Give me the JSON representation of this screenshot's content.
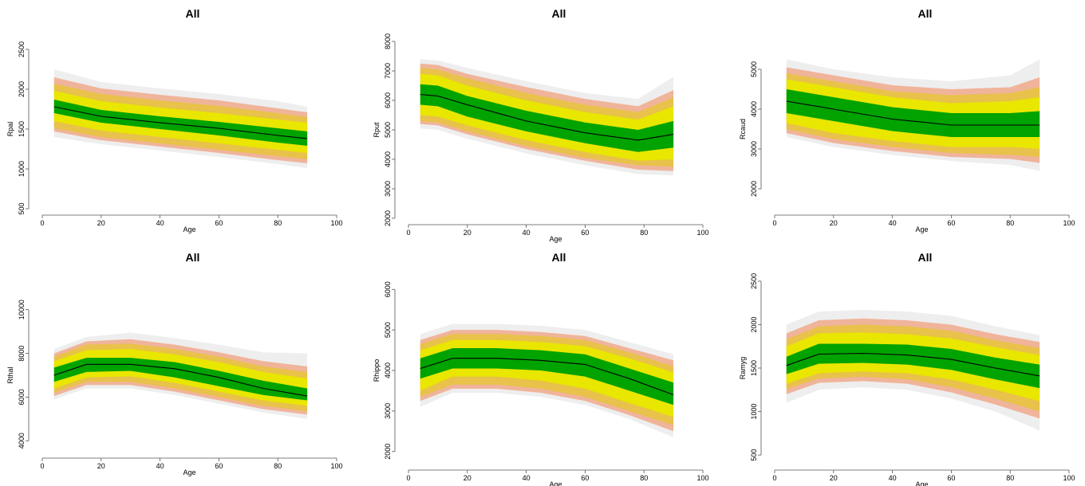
{
  "colors": {
    "b99": "#eeeeee",
    "b95": "#f0b49a",
    "b90": "#e8c24a",
    "b75": "#e9e600",
    "b50": "#00a300",
    "median": "#000000"
  },
  "chart_data": [
    {
      "type": "area",
      "title": "All",
      "xlabel": "Age",
      "ylabel": "Rpal",
      "xlim": [
        0,
        100
      ],
      "ylim": [
        500,
        2500
      ],
      "xticks": [
        "0",
        "20",
        "40",
        "60",
        "80",
        "100"
      ],
      "yticks": [
        "500",
        "1000",
        "1500",
        "2000",
        "2500"
      ],
      "x": [
        4,
        20,
        40,
        60,
        80,
        90
      ],
      "bands": {
        "q005": [
          1400,
          1310,
          1230,
          1150,
          1060,
          1010
        ],
        "q025": [
          1470,
          1360,
          1280,
          1200,
          1110,
          1070
        ],
        "q05": [
          1510,
          1400,
          1320,
          1240,
          1160,
          1120
        ],
        "q125": [
          1600,
          1480,
          1400,
          1320,
          1240,
          1200
        ],
        "q25": [
          1700,
          1580,
          1500,
          1420,
          1330,
          1290
        ],
        "q50": [
          1780,
          1660,
          1580,
          1510,
          1420,
          1380
        ],
        "q75": [
          1870,
          1740,
          1660,
          1590,
          1510,
          1470
        ],
        "q875": [
          1980,
          1850,
          1770,
          1700,
          1620,
          1580
        ],
        "q95": [
          2070,
          1940,
          1860,
          1790,
          1700,
          1650
        ],
        "q975": [
          2150,
          2010,
          1930,
          1860,
          1760,
          1710
        ],
        "q995": [
          2250,
          2090,
          2010,
          1940,
          1850,
          1780
        ]
      }
    },
    {
      "type": "area",
      "title": "All",
      "xlabel": "Age",
      "ylabel": "Rput",
      "xlim": [
        0,
        100
      ],
      "ylim": [
        2000,
        8000
      ],
      "xticks": [
        "0",
        "20",
        "40",
        "60",
        "80",
        "100"
      ],
      "yticks": [
        "2000",
        "3000",
        "4000",
        "5000",
        "6000",
        "7000",
        "8000"
      ],
      "x": [
        4,
        10,
        20,
        40,
        60,
        78,
        90
      ],
      "bands": {
        "q005": [
          5050,
          5000,
          4700,
          4200,
          3800,
          3500,
          3450
        ],
        "q025": [
          5200,
          5150,
          4850,
          4350,
          3950,
          3650,
          3600
        ],
        "q05": [
          5300,
          5250,
          4950,
          4450,
          4050,
          3800,
          3750
        ],
        "q125": [
          5500,
          5450,
          5150,
          4650,
          4250,
          3950,
          4000
        ],
        "q25": [
          5850,
          5800,
          5450,
          4950,
          4550,
          4250,
          4400
        ],
        "q50": [
          6200,
          6150,
          5850,
          5300,
          4900,
          4650,
          4850
        ],
        "q75": [
          6550,
          6500,
          6150,
          5650,
          5250,
          5000,
          5300
        ],
        "q875": [
          6900,
          6850,
          6500,
          6000,
          5600,
          5350,
          5800
        ],
        "q95": [
          7100,
          7050,
          6750,
          6250,
          5850,
          5600,
          6100
        ],
        "q975": [
          7250,
          7200,
          6900,
          6450,
          6050,
          5800,
          6350
        ],
        "q995": [
          7400,
          7350,
          7100,
          6650,
          6250,
          6050,
          6800
        ]
      }
    },
    {
      "type": "area",
      "title": "All",
      "xlabel": "Age",
      "ylabel": "Rcaud",
      "xlim": [
        0,
        100
      ],
      "ylim": [
        1500,
        5500
      ],
      "xticks": [
        "0",
        "20",
        "40",
        "60",
        "80",
        "100"
      ],
      "yticks": [
        "2000",
        "3000",
        "4000",
        "5000"
      ],
      "x": [
        4,
        20,
        40,
        60,
        80,
        90
      ],
      "bands": {
        "q005": [
          3300,
          3050,
          2850,
          2700,
          2600,
          2450
        ],
        "q025": [
          3400,
          3150,
          2950,
          2800,
          2750,
          2650
        ],
        "q05": [
          3500,
          3250,
          3050,
          2900,
          2850,
          2800
        ],
        "q125": [
          3650,
          3400,
          3200,
          3050,
          3050,
          3000
        ],
        "q25": [
          3900,
          3700,
          3450,
          3300,
          3300,
          3300
        ],
        "q50": [
          4200,
          4000,
          3750,
          3600,
          3600,
          3600
        ],
        "q75": [
          4500,
          4300,
          4050,
          3900,
          3900,
          3950
        ],
        "q875": [
          4750,
          4550,
          4300,
          4150,
          4200,
          4300
        ],
        "q95": [
          4900,
          4700,
          4450,
          4350,
          4400,
          4550
        ],
        "q975": [
          5050,
          4850,
          4600,
          4500,
          4550,
          4800
        ],
        "q995": [
          5250,
          5000,
          4800,
          4700,
          4850,
          5250
        ]
      }
    },
    {
      "type": "area",
      "title": "All",
      "xlabel": "Age",
      "ylabel": "Rthal",
      "xlim": [
        0,
        100
      ],
      "ylim": [
        3500,
        10500
      ],
      "xticks": [
        "0",
        "20",
        "40",
        "60",
        "80",
        "100"
      ],
      "yticks": [
        "4000",
        "6000",
        "8000",
        "10000"
      ],
      "x": [
        4,
        15,
        30,
        45,
        60,
        75,
        90
      ],
      "bands": {
        "q005": [
          5900,
          6400,
          6400,
          6100,
          5700,
          5300,
          5000
        ],
        "q025": [
          6050,
          6550,
          6550,
          6250,
          5850,
          5450,
          5200
        ],
        "q05": [
          6200,
          6700,
          6700,
          6400,
          6000,
          5600,
          5350
        ],
        "q125": [
          6400,
          6900,
          6950,
          6650,
          6250,
          5850,
          5600
        ],
        "q25": [
          6700,
          7150,
          7200,
          6900,
          6500,
          6100,
          5850
        ],
        "q50": [
          7000,
          7500,
          7500,
          7300,
          6900,
          6400,
          6050
        ],
        "q75": [
          7350,
          7800,
          7800,
          7600,
          7200,
          6750,
          6400
        ],
        "q875": [
          7650,
          8150,
          8200,
          7950,
          7600,
          7150,
          6850
        ],
        "q95": [
          7850,
          8400,
          8450,
          8200,
          7850,
          7400,
          7150
        ],
        "q975": [
          8000,
          8550,
          8650,
          8400,
          8050,
          7650,
          7400
        ],
        "q995": [
          8200,
          8750,
          8950,
          8700,
          8400,
          8050,
          8000
        ]
      }
    },
    {
      "type": "area",
      "title": "All",
      "xlabel": "Age",
      "ylabel": "Rhippo",
      "xlim": [
        0,
        100
      ],
      "ylim": [
        1700,
        6300
      ],
      "xticks": [
        "0",
        "20",
        "40",
        "60",
        "80",
        "100"
      ],
      "yticks": [
        "2000",
        "3000",
        "4000",
        "5000",
        "6000"
      ],
      "x": [
        4,
        15,
        30,
        45,
        60,
        75,
        90
      ],
      "bands": {
        "q005": [
          3100,
          3450,
          3450,
          3350,
          3150,
          2800,
          2350
        ],
        "q025": [
          3250,
          3550,
          3550,
          3450,
          3250,
          2900,
          2500
        ],
        "q05": [
          3350,
          3650,
          3650,
          3550,
          3350,
          3000,
          2650
        ],
        "q125": [
          3500,
          3850,
          3850,
          3750,
          3550,
          3200,
          2850
        ],
        "q25": [
          3800,
          4050,
          4050,
          4000,
          3850,
          3500,
          3150
        ],
        "q50": [
          4050,
          4300,
          4300,
          4250,
          4150,
          3800,
          3400
        ],
        "q75": [
          4300,
          4550,
          4550,
          4500,
          4400,
          4050,
          3700
        ],
        "q875": [
          4500,
          4750,
          4750,
          4700,
          4600,
          4300,
          3950
        ],
        "q95": [
          4650,
          4900,
          4900,
          4850,
          4750,
          4450,
          4100
        ],
        "q975": [
          4750,
          5000,
          5000,
          4950,
          4850,
          4550,
          4250
        ],
        "q995": [
          4900,
          5150,
          5150,
          5100,
          5000,
          4700,
          4400
        ]
      }
    },
    {
      "type": "area",
      "title": "All",
      "xlabel": "Age",
      "ylabel": "Ramyg",
      "xlim": [
        0,
        100
      ],
      "ylim": [
        400,
        2600
      ],
      "xticks": [
        "0",
        "20",
        "40",
        "60",
        "80",
        "100"
      ],
      "yticks": [
        "500",
        "1000",
        "1500",
        "2000",
        "2500"
      ],
      "x": [
        4,
        15,
        30,
        45,
        60,
        75,
        90
      ],
      "bands": {
        "q005": [
          1100,
          1250,
          1280,
          1250,
          1150,
          1000,
          780
        ],
        "q025": [
          1200,
          1330,
          1350,
          1320,
          1220,
          1080,
          920
        ],
        "q05": [
          1260,
          1380,
          1400,
          1370,
          1280,
          1150,
          1000
        ],
        "q125": [
          1320,
          1440,
          1460,
          1440,
          1370,
          1250,
          1120
        ],
        "q25": [
          1430,
          1550,
          1560,
          1540,
          1480,
          1370,
          1270
        ],
        "q50": [
          1530,
          1660,
          1670,
          1650,
          1600,
          1500,
          1410
        ],
        "q75": [
          1630,
          1780,
          1780,
          1770,
          1720,
          1620,
          1540
        ],
        "q875": [
          1750,
          1900,
          1910,
          1890,
          1840,
          1740,
          1650
        ],
        "q95": [
          1830,
          1980,
          2000,
          1980,
          1930,
          1820,
          1730
        ],
        "q975": [
          1900,
          2050,
          2070,
          2050,
          2000,
          1890,
          1800
        ],
        "q995": [
          2000,
          2150,
          2170,
          2150,
          2100,
          1980,
          1880
        ]
      }
    }
  ]
}
